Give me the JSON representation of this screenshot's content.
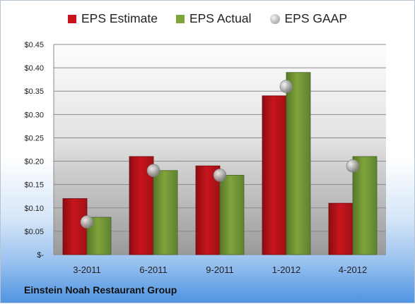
{
  "legend": {
    "estimate": "EPS Estimate",
    "actual": "EPS Actual",
    "gaap": "EPS GAAP"
  },
  "footer": {
    "company": "Einstein Noah Restaurant Group"
  },
  "colors": {
    "estimate": "#c8141c",
    "actual": "#7fa43a",
    "gaap": "#a8a8a8"
  },
  "chart_data": {
    "type": "bar",
    "categories": [
      "3-2011",
      "6-2011",
      "9-2011",
      "1-2012",
      "4-2012"
    ],
    "series": [
      {
        "name": "EPS Estimate",
        "values": [
          0.12,
          0.21,
          0.19,
          0.34,
          0.11
        ]
      },
      {
        "name": "EPS Actual",
        "values": [
          0.08,
          0.18,
          0.17,
          0.39,
          0.21
        ]
      },
      {
        "name": "EPS GAAP",
        "values": [
          0.07,
          0.18,
          0.17,
          0.36,
          0.19
        ]
      }
    ],
    "yticks": [
      "$-",
      "$0.05",
      "$0.10",
      "$0.15",
      "$0.20",
      "$0.25",
      "$0.30",
      "$0.35",
      "$0.40",
      "$0.45"
    ],
    "ylim": [
      0,
      0.45
    ],
    "grid": true,
    "legend_position": "top"
  }
}
